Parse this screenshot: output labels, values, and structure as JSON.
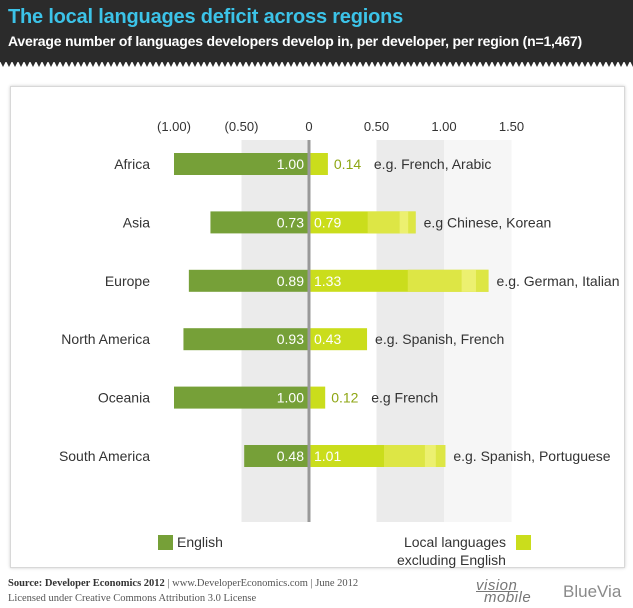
{
  "title": "The local languages deficit across regions",
  "subtitle": "Average number of languages developers develop in, per developer, per region (n=1,467)",
  "colors": {
    "english": "#76a038",
    "local": "#cadd1c",
    "local_light": "#dfe74a",
    "local_text": "#8ea614",
    "band": "#ebebeb",
    "axis": "#999999"
  },
  "chart_data": {
    "type": "bar",
    "orientation": "horizontal-diverging",
    "x_ticks": [
      "(1.00)",
      "(0.50)",
      "0",
      "0.50",
      "1.00",
      "1.50"
    ],
    "x_tick_values": [
      -1.0,
      -0.5,
      0,
      0.5,
      1.0,
      1.5
    ],
    "xlim": [
      -1.0,
      1.5
    ],
    "categories": [
      "Africa",
      "Asia",
      "Europe",
      "North America",
      "Oceania",
      "South America"
    ],
    "series": [
      {
        "name": "English",
        "values": [
          1.0,
          0.73,
          0.89,
          0.93,
          1.0,
          0.48
        ],
        "labels": [
          "1.00",
          "0.73",
          "0.89",
          "0.93",
          "1.00",
          "0.48"
        ]
      },
      {
        "name": "Local languages excluding English",
        "values": [
          0.14,
          0.79,
          1.33,
          0.43,
          0.12,
          1.01
        ],
        "labels": [
          "0.14",
          "0.79",
          "1.33",
          "0.43",
          "0.12",
          "1.01"
        ]
      }
    ],
    "annotations": [
      "e.g. French, Arabic",
      "e.g Chinese, Korean",
      "e.g. German, Italian",
      "e.g. Spanish, French",
      "e.g French",
      "e.g. Spanish, Portuguese"
    ]
  },
  "legend": {
    "english": "English",
    "local_line1": "Local languages",
    "local_line2": "excluding English"
  },
  "footer": {
    "source_label": "Source: Developer Economics 2012",
    "source_rest": " | www.DeveloperEconomics.com | June 2012",
    "license": "Licensed under Creative Commons Attribution 3.0 License"
  },
  "logos": {
    "visionmobile_line1": "vision",
    "visionmobile_line2": "mobile",
    "bluevia": "BlueVia"
  }
}
